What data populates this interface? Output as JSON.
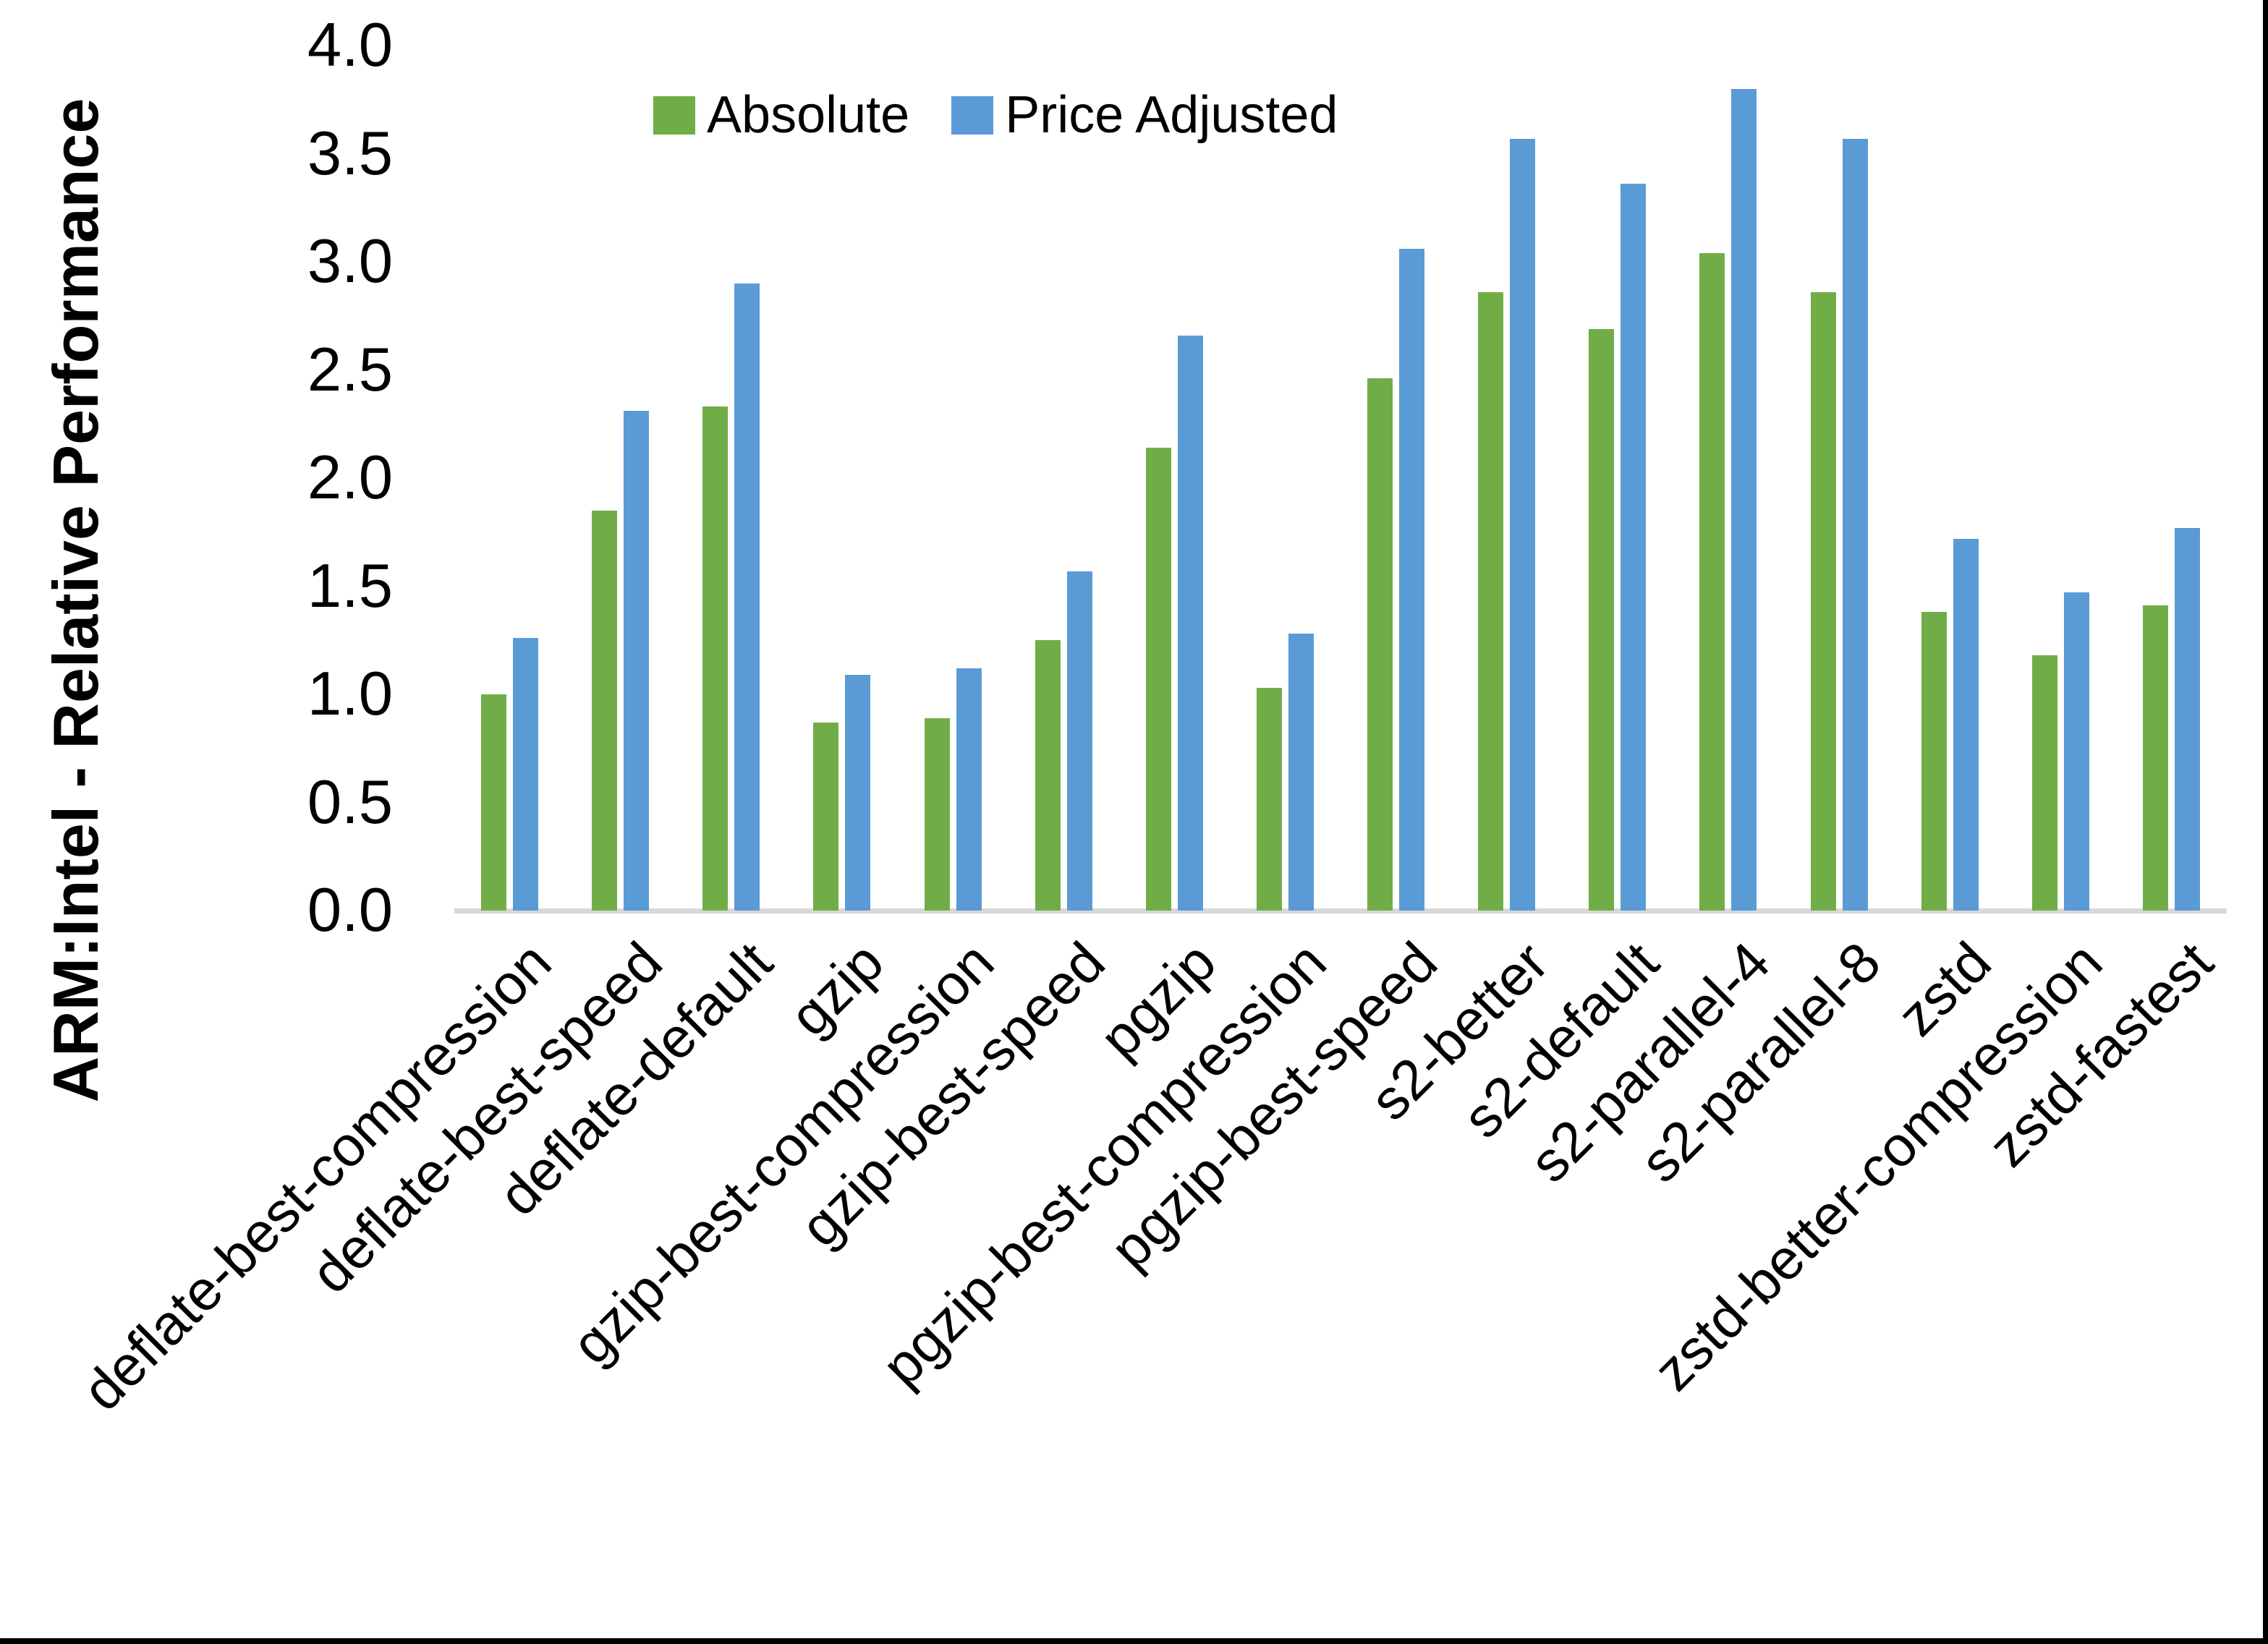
{
  "chart_data": {
    "type": "bar",
    "title": "",
    "xlabel": "",
    "ylabel": "ARM:Intel - Relative Performance",
    "ylim": [
      0.0,
      4.0
    ],
    "ytick_step": 0.5,
    "ytick_labels": [
      "0.0",
      "0.5",
      "1.0",
      "1.5",
      "2.0",
      "2.5",
      "3.0",
      "3.5",
      "4.0"
    ],
    "grid": false,
    "legend_position": "top-center",
    "categories": [
      "deflate-best-compression",
      "deflate-best-speed",
      "deflate-default",
      "gzip",
      "gzip-best-compression",
      "gzip-best-speed",
      "pgzip",
      "pgzip-best-compression",
      "pgzip-best-speed",
      "s2-better",
      "s2-default",
      "s2-parallel-4",
      "s2-parallel-8",
      "zstd",
      "zstd-better-compression",
      "zstd-fastest"
    ],
    "series": [
      {
        "name": "Absolute",
        "color": "#70AD47",
        "values": [
          1.0,
          1.85,
          2.33,
          0.87,
          0.89,
          1.25,
          2.14,
          1.03,
          2.46,
          2.86,
          2.69,
          3.04,
          2.86,
          1.38,
          1.18,
          1.41
        ]
      },
      {
        "name": "Price Adjusted",
        "color": "#5B9BD5",
        "values": [
          1.26,
          2.31,
          2.9,
          1.09,
          1.12,
          1.57,
          2.66,
          1.28,
          3.06,
          3.57,
          3.36,
          3.8,
          3.57,
          1.72,
          1.47,
          1.77
        ]
      }
    ]
  },
  "colors": {
    "axis_line": "#D9D9D9",
    "text": "#000000",
    "frame": "#000000",
    "background": "#FFFFFF"
  }
}
